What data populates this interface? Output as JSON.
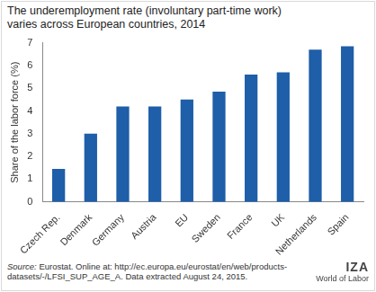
{
  "chart_data": {
    "type": "bar",
    "title": [
      "The underemployment rate (involuntary part-time work)",
      "varies across European countries, 2014"
    ],
    "y_label": "Share of the labor force (%)",
    "categories": [
      "Czech Rep.",
      "Denmark",
      "Germany",
      "Austria",
      "EU",
      "Sweden",
      "France",
      "UK",
      "Netherlands",
      "Spain"
    ],
    "values": [
      1.45,
      3.0,
      4.2,
      4.2,
      4.5,
      4.85,
      5.6,
      5.7,
      6.7,
      6.85
    ],
    "color": "#1f5ea8",
    "ylim": [
      0,
      7
    ],
    "yticks": [
      0,
      1,
      2,
      3,
      4,
      5,
      6,
      7
    ],
    "grid": false,
    "source": [
      "Source:",
      "Eurostat. Online at: http://ec.europa.eu/eurostat/en/web/products-datasets/-/LFSI_SUP_AGE_A. Data extracted August 24, 2015."
    ],
    "logo": [
      "IZA",
      "World of Labor"
    ]
  }
}
